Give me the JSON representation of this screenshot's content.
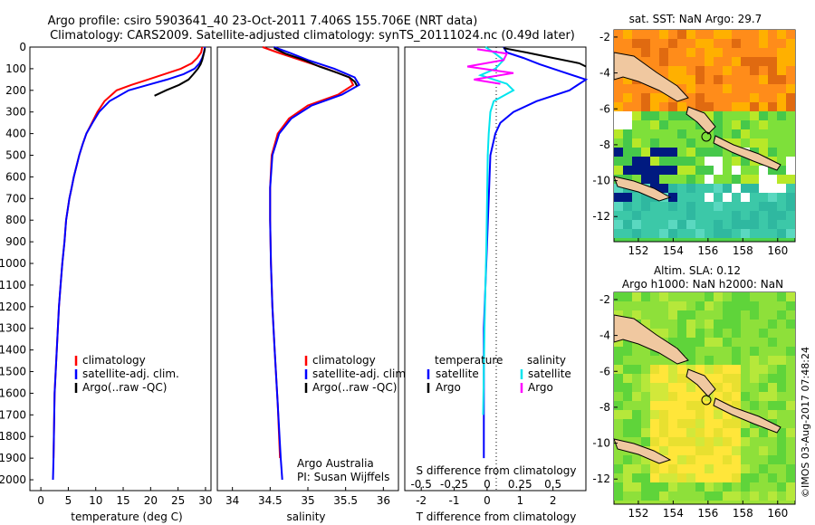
{
  "header": {
    "line1": "Argo profile: csiro 5903641_40 23-Oct-2011 7.406S 155.706E (NRT data)",
    "line2": "Climatology: CARS2009. Satellite-adjusted climatology: synTS_20111024.nc (0.49d later)"
  },
  "colors": {
    "climatology": "#ff0000",
    "satellite": "#0000ff",
    "argo": "#000000",
    "sal_satellite": "#00e5ee",
    "sal_argo": "#ff00ff"
  },
  "chart_data": [
    {
      "type": "line",
      "xlabel": "temperature (deg C)",
      "xlim": [
        -2,
        31
      ],
      "xticks": [
        0,
        5,
        10,
        15,
        20,
        25,
        30
      ],
      "ylim": [
        0,
        2050
      ],
      "yticks": [
        0,
        100,
        200,
        300,
        400,
        500,
        600,
        700,
        800,
        900,
        1000,
        1100,
        1200,
        1300,
        1400,
        1500,
        1600,
        1700,
        1800,
        1900,
        2000
      ],
      "legend": [
        "climatology",
        "satellite-adj. clim.",
        "Argo(..raw -QC)"
      ],
      "series": [
        {
          "name": "climatology",
          "color": "#ff0000",
          "x": [
            29.4,
            29.2,
            28.5,
            27.5,
            25.5,
            22.5,
            19.5,
            16.5,
            13.8,
            11.6,
            10.3,
            9.3,
            8.3,
            7.6,
            7.0,
            6.5,
            6.0,
            5.6,
            5.2,
            4.9,
            4.6,
            4.3,
            3.9,
            3.6,
            3.3,
            3.1,
            2.9,
            2.7,
            2.5,
            2.4,
            2.3
          ],
          "y": [
            0,
            25,
            50,
            75,
            100,
            125,
            150,
            175,
            200,
            250,
            300,
            350,
            400,
            450,
            500,
            550,
            600,
            650,
            700,
            750,
            800,
            900,
            1000,
            1100,
            1200,
            1300,
            1400,
            1500,
            1600,
            1750,
            1900
          ]
        },
        {
          "name": "satellite-adj. clim.",
          "color": "#0000ff",
          "x": [
            29.9,
            29.7,
            29.4,
            28.9,
            28.0,
            26.0,
            23.0,
            19.5,
            16.0,
            12.5,
            10.6,
            9.4,
            8.3,
            7.6,
            7.0,
            6.5,
            6.0,
            5.6,
            5.2,
            4.9,
            4.6,
            4.3,
            3.9,
            3.6,
            3.3,
            3.1,
            2.9,
            2.7,
            2.5,
            2.4,
            2.3,
            2.2
          ],
          "y": [
            0,
            25,
            50,
            75,
            100,
            125,
            150,
            175,
            200,
            250,
            300,
            350,
            400,
            450,
            500,
            550,
            600,
            650,
            700,
            750,
            800,
            900,
            1000,
            1100,
            1200,
            1300,
            1400,
            1500,
            1600,
            1750,
            1900,
            2000
          ]
        },
        {
          "name": "Argo(..raw -QC)",
          "color": "#000000",
          "x": [
            29.9,
            29.8,
            29.6,
            29.4,
            29.1,
            28.6,
            27.8,
            26.9,
            25.2,
            22.8,
            20.7
          ],
          "y": [
            5,
            20,
            40,
            60,
            80,
            100,
            125,
            150,
            175,
            200,
            225
          ]
        }
      ]
    },
    {
      "type": "line",
      "xlabel": "salinity",
      "xlim": [
        33.8,
        36.2
      ],
      "xticks": [
        34,
        34.5,
        35,
        35.5,
        36
      ],
      "ylim": [
        0,
        2050
      ],
      "legend": [
        "climatology",
        "satellite-adj. clim.",
        "Argo(..raw -QC)"
      ],
      "annotation": [
        "Argo Australia",
        "PI: Susan Wijffels"
      ],
      "series": [
        {
          "name": "climatology",
          "color": "#ff0000",
          "x": [
            34.4,
            34.6,
            34.9,
            35.25,
            35.55,
            35.6,
            35.4,
            35.0,
            34.75,
            34.6,
            34.52,
            34.5,
            34.5,
            34.51,
            34.53,
            34.56,
            34.6,
            34.63
          ],
          "y": [
            0,
            25,
            60,
            100,
            140,
            175,
            220,
            270,
            330,
            400,
            500,
            650,
            800,
            1000,
            1200,
            1400,
            1650,
            1900
          ]
        },
        {
          "name": "satellite-adj. clim.",
          "color": "#0000ff",
          "x": [
            34.55,
            34.75,
            35.0,
            35.35,
            35.62,
            35.68,
            35.45,
            35.05,
            34.78,
            34.62,
            34.53,
            34.5,
            34.5,
            34.51,
            34.53,
            34.56,
            34.6,
            34.64,
            34.66
          ],
          "y": [
            0,
            25,
            60,
            100,
            140,
            175,
            220,
            270,
            330,
            400,
            500,
            650,
            800,
            1000,
            1200,
            1400,
            1650,
            1900,
            2000
          ]
        },
        {
          "name": "Argo(..raw -QC)",
          "color": "#000000",
          "x": [
            34.55,
            34.7,
            34.95,
            35.15,
            35.4,
            35.55,
            35.62,
            35.65
          ],
          "y": [
            5,
            30,
            60,
            90,
            120,
            140,
            160,
            180
          ]
        }
      ]
    },
    {
      "type": "line",
      "xlabel": "T difference from climatology",
      "xlabel2": "S difference from climatology",
      "xlim": [
        -2.5,
        3.0
      ],
      "xticks": [
        -2,
        -1,
        0,
        1,
        2
      ],
      "xticks_top": [
        "-0.5",
        "-0.25",
        "0",
        "0.25",
        "0.5"
      ],
      "ylim": [
        0,
        2050
      ],
      "legend_temperature": [
        "temperature",
        "satellite",
        "Argo"
      ],
      "legend_salinity": [
        "salinity",
        "satellite",
        "Argo"
      ],
      "series": [
        {
          "name": "satellite",
          "color": "#0000ff",
          "x": [
            0.5,
            0.6,
            1.1,
            1.6,
            2.2,
            3.0,
            2.5,
            1.5,
            0.8,
            0.4,
            0.25,
            0.1,
            0.05,
            0.0,
            -0.05,
            -0.1,
            -0.1,
            -0.1,
            -0.1
          ],
          "y": [
            0,
            25,
            50,
            80,
            110,
            150,
            200,
            250,
            300,
            350,
            400,
            500,
            700,
            900,
            1100,
            1300,
            1500,
            1700,
            1900
          ]
        },
        {
          "name": "satellite",
          "color": "#00e5ee",
          "x": [
            -0.05,
            0.2,
            0.5,
            0.25,
            -0.2,
            0.6,
            0.8,
            0.2,
            0.1,
            0.05,
            0.02,
            0.0,
            -0.02,
            -0.05,
            -0.08,
            -0.1,
            -0.12
          ],
          "y": [
            0,
            25,
            60,
            100,
            130,
            170,
            200,
            250,
            300,
            400,
            500,
            700,
            900,
            1100,
            1300,
            1500,
            1700
          ]
        },
        {
          "name": "Argo",
          "color": "#000000",
          "x": [
            0.5,
            1.2,
            2.0,
            2.8,
            3.0
          ],
          "y": [
            5,
            25,
            50,
            75,
            90
          ]
        },
        {
          "name": "Argo",
          "color": "#ff00ff",
          "x": [
            -0.3,
            0.6,
            0.5,
            -0.6,
            0.8,
            -0.4,
            0.4
          ],
          "y": [
            10,
            30,
            60,
            90,
            120,
            150,
            170
          ]
        }
      ]
    },
    {
      "type": "heatmap",
      "title": "sat. SST: NaN Argo: 29.7",
      "xlim": [
        150.6,
        161.0
      ],
      "ylim": [
        -13.4,
        -1.6
      ],
      "xticks": [
        152,
        154,
        156,
        158,
        160
      ],
      "yticks": [
        -2,
        -4,
        -6,
        -8,
        -10,
        -12
      ]
    },
    {
      "type": "heatmap",
      "title_line1": "Altim. SLA: 0.12",
      "title_line2": "Argo h1000: NaN h2000: NaN",
      "xlim": [
        150.6,
        161.0
      ],
      "ylim": [
        -13.4,
        -1.6
      ],
      "xticks": [
        152,
        154,
        156,
        158,
        160
      ],
      "yticks": [
        -2,
        -4,
        -6,
        -8,
        -10,
        -12
      ]
    }
  ],
  "footer": {
    "credit": "©IMOS 03-Aug-2017 07:48:24"
  }
}
